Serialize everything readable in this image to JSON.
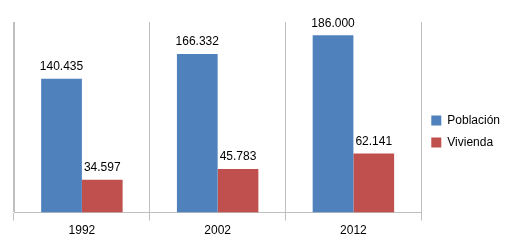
{
  "chart_data": {
    "type": "bar",
    "categories": [
      "1992",
      "2002",
      "2012"
    ],
    "series": [
      {
        "name": "Población",
        "color": "#4f81bd",
        "values": [
          140435,
          166332,
          186000
        ],
        "value_labels": [
          "140.435",
          "166.332",
          "186.000"
        ]
      },
      {
        "name": "Vivienda",
        "color": "#c0504d",
        "values": [
          34597,
          45783,
          62141
        ],
        "value_labels": [
          "34.597",
          "45.783",
          "62.141"
        ]
      }
    ],
    "ylim": [
      0,
      200000
    ],
    "yticks": [
      0,
      20000,
      40000,
      60000,
      80000,
      100000,
      120000,
      140000,
      160000,
      180000,
      200000
    ],
    "grid": false,
    "legend": "right",
    "data_labels": true,
    "tick_labels": "x"
  }
}
